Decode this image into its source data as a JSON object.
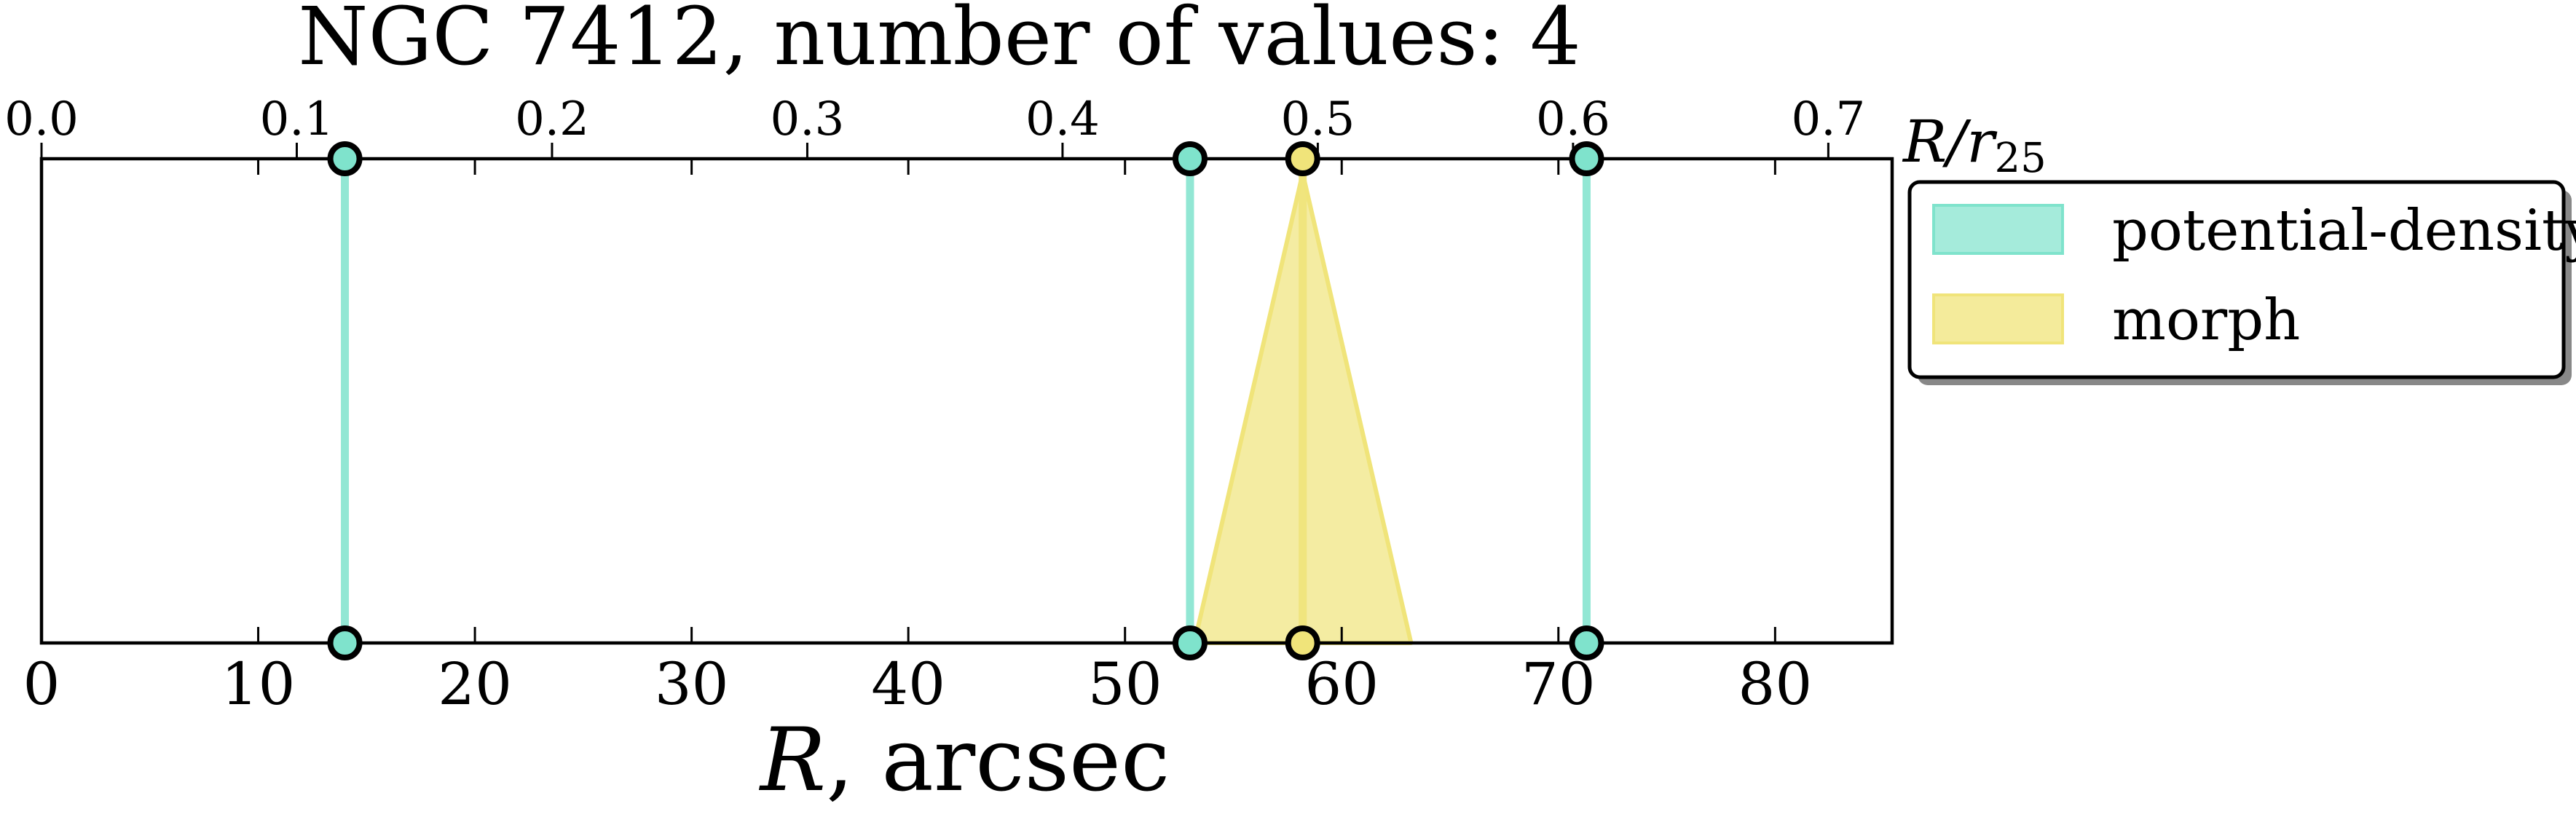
{
  "chart_data": {
    "type": "line",
    "title": "NGC 7412, number of values: 4",
    "xlabel": "R, arcsec",
    "xlabel_main": "R",
    "xlabel_rest": ", arcsec",
    "top_axis_label": "R/r",
    "top_axis_label_subscript": "25",
    "xlim": [
      0,
      85.4
    ],
    "xticks": [
      0,
      10,
      20,
      30,
      40,
      50,
      60,
      70,
      80
    ],
    "top_xlim": [
      0,
      0.725
    ],
    "top_xticks": [
      "0.0",
      "0.1",
      "0.2",
      "0.3",
      "0.4",
      "0.5",
      "0.6",
      "0.7"
    ],
    "grid": false,
    "legend_position": "outside-right-top",
    "series": [
      {
        "name": "potential-density",
        "kind": "vertical-lines",
        "color": "#7fe3cc",
        "values": [
          14.0,
          53.0,
          71.3
        ]
      },
      {
        "name": "morph",
        "kind": "vertical-lines-with-range",
        "color": "#f0e47a",
        "values": [
          58.2
        ],
        "ranges": [
          [
            53.2,
            63.2
          ]
        ]
      }
    ]
  }
}
